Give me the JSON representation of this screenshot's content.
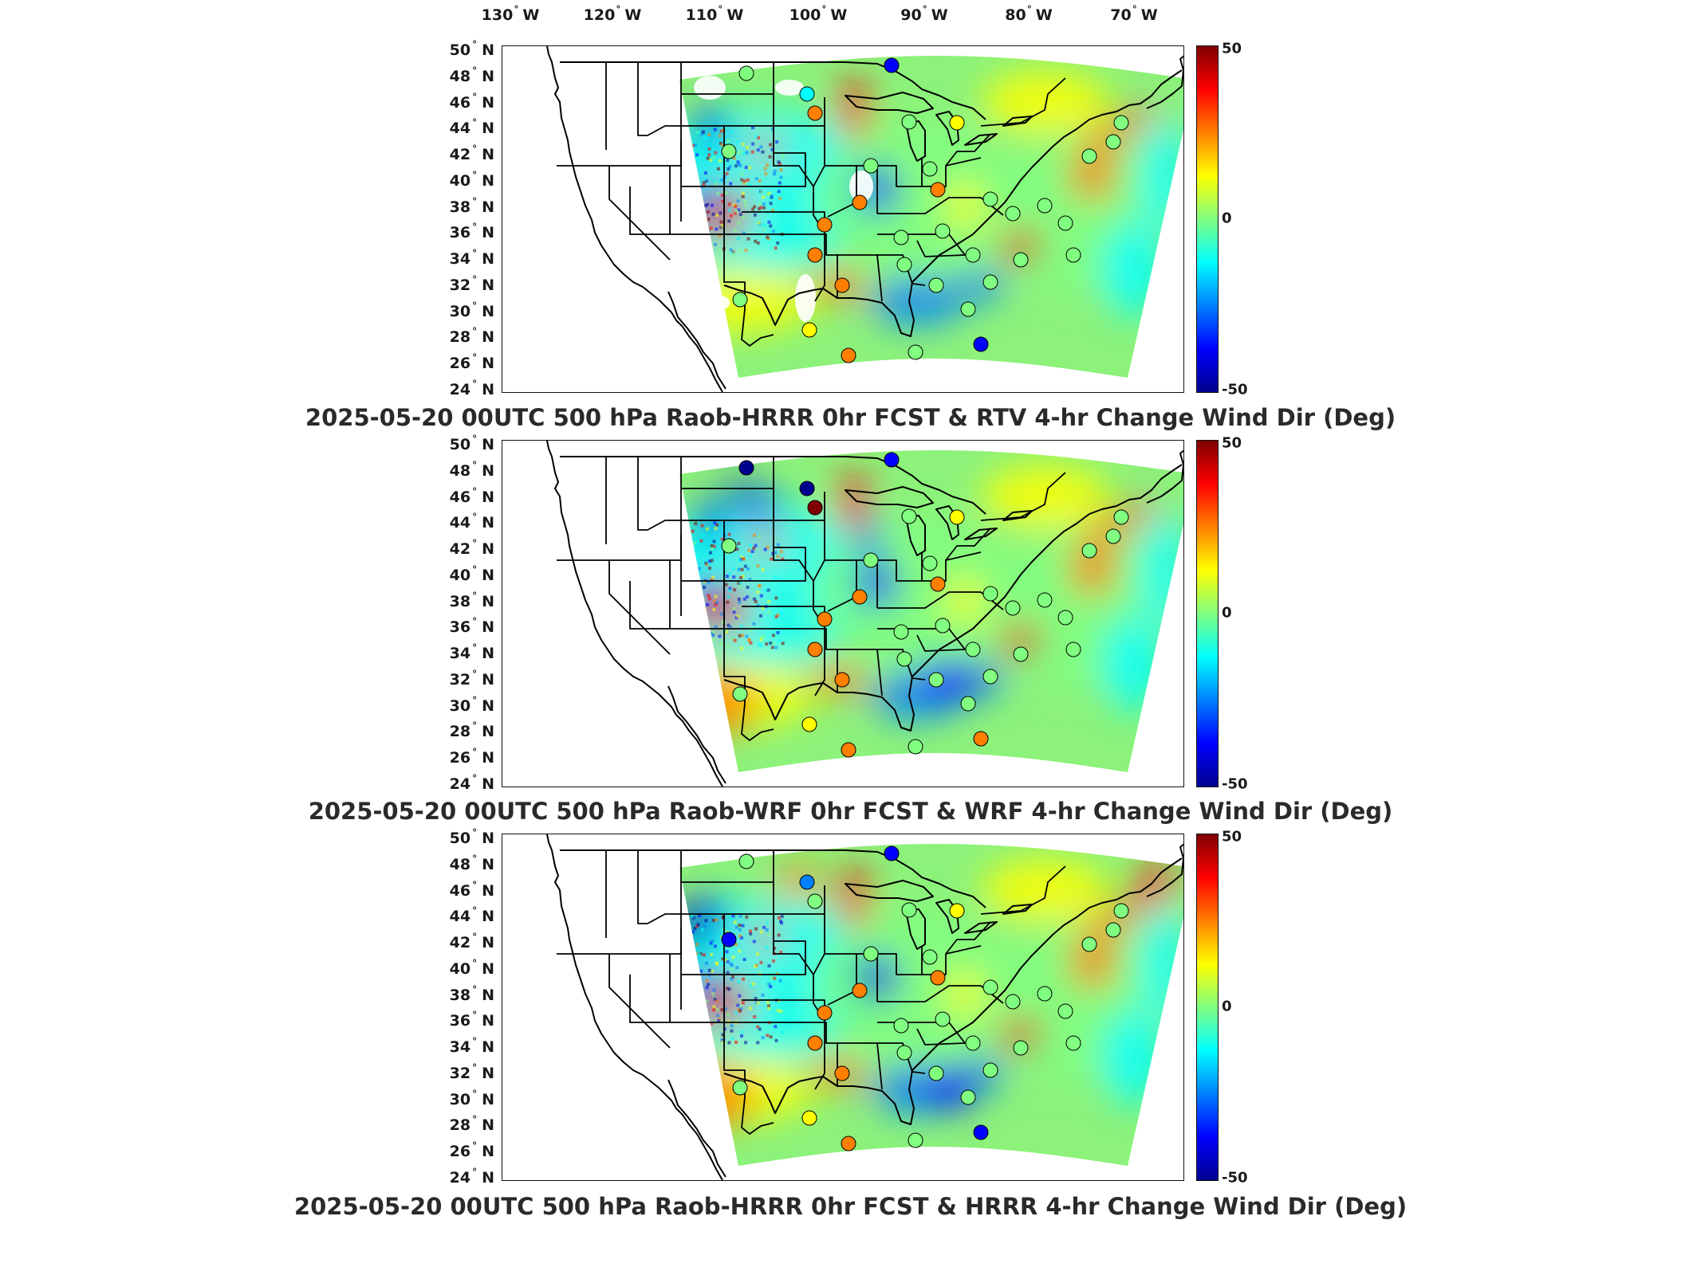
{
  "lon_labels": [
    {
      "deg": "130",
      "hem": "W"
    },
    {
      "deg": "120",
      "hem": "W"
    },
    {
      "deg": "110",
      "hem": "W"
    },
    {
      "deg": "100",
      "hem": "W"
    },
    {
      "deg": "90",
      "hem": "W"
    },
    {
      "deg": "80",
      "hem": "W"
    },
    {
      "deg": "70",
      "hem": "W"
    }
  ],
  "lat_labels": [
    {
      "deg": "50",
      "hem": "N"
    },
    {
      "deg": "48",
      "hem": "N"
    },
    {
      "deg": "46",
      "hem": "N"
    },
    {
      "deg": "44",
      "hem": "N"
    },
    {
      "deg": "42",
      "hem": "N"
    },
    {
      "deg": "40",
      "hem": "N"
    },
    {
      "deg": "38",
      "hem": "N"
    },
    {
      "deg": "36",
      "hem": "N"
    },
    {
      "deg": "34",
      "hem": "N"
    },
    {
      "deg": "32",
      "hem": "N"
    },
    {
      "deg": "30",
      "hem": "N"
    },
    {
      "deg": "28",
      "hem": "N"
    },
    {
      "deg": "26",
      "hem": "N"
    },
    {
      "deg": "24",
      "hem": "N"
    }
  ],
  "colorbar": {
    "max": "50",
    "mid": "0",
    "min": "-50",
    "colors": [
      "#7f0000",
      "#ff0000",
      "#ff8000",
      "#ffff00",
      "#80ff80",
      "#00ffff",
      "#0080ff",
      "#0000ff",
      "#00008f"
    ]
  },
  "panels": [
    {
      "title": "2025-05-20 00UTC 500 hPa Raob-HRRR 0hr FCST & RTV 4-hr Change Wind Dir (Deg)"
    },
    {
      "title": "2025-05-20 00UTC 500 hPa Raob-WRF 0hr FCST & WRF 4-hr Change Wind Dir (Deg)"
    },
    {
      "title": "2025-05-20 00UTC 500 hPa Raob-HRRR 0hr FCST & HRRR 4-hr Change Wind Dir (Deg)"
    }
  ]
}
